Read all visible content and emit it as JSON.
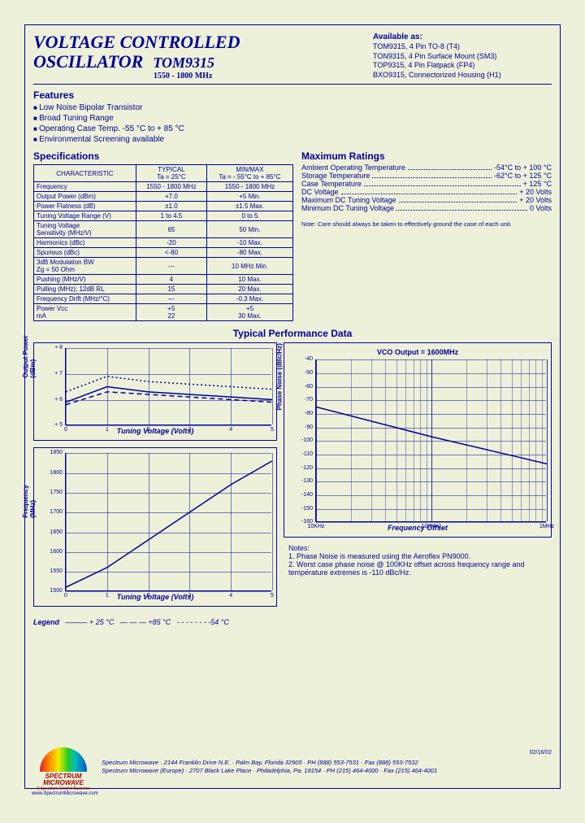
{
  "header": {
    "title_line1": "VOLTAGE CONTROLLED",
    "title_line2": "OSCILLATOR",
    "part_number": "TOM9315",
    "freq_range": "1550 - 1800 MHz"
  },
  "available": {
    "heading": "Available as:",
    "items": [
      "TOM9315, 4 Pin TO-8 (T4)",
      "TON9315, 4 Pin Surface Mount (SM3)",
      "TOP9315, 4 Pin Flatpack (FP4)",
      "BXO9315, Connectorized Housing (H1)"
    ]
  },
  "features": {
    "heading": "Features",
    "items": [
      "Low Noise Bipolar Transistor",
      "Broad Tuning Range",
      "Operating Case Temp. -55 °C to + 85 °C",
      "Environmental Screening available"
    ]
  },
  "spec": {
    "heading": "Specifications",
    "col_headers": [
      "CHARACTERISTIC",
      "TYPICAL\nTa = 25°C",
      "MIN/MAX\nTa = - 55°C to + 85°C"
    ],
    "rows": [
      [
        "Frequency",
        "1550 - 1800 MHz",
        "1550 - 1800 MHz"
      ],
      [
        "Output Power (dBm)",
        "+7.0",
        "+5 Min."
      ],
      [
        "Power Flatness (dB)",
        "±1.0",
        "±1.5 Max."
      ],
      [
        "Tuning Voltage Range (V)",
        "1 to 4.5",
        "0 to 5"
      ],
      [
        "Tuning Voltage\nSensitivity (MHz/V)",
        "65",
        "50 Min."
      ],
      [
        "Harmonics (dBc)",
        "-20",
        "-10 Max."
      ],
      [
        "Spurious (dBc)",
        "<-80",
        "-80 Max."
      ],
      [
        "3dB Modulation BW\nZg = 50 Ohm",
        "---",
        "10 MHz Min."
      ],
      [
        "Pushing (MHz/V)",
        "4",
        "10 Max."
      ],
      [
        "Pulling (MHz); 12dB RL",
        "15",
        "20 Max."
      ],
      [
        "Frequency Drift (MHz/°C)",
        "---",
        "-0.3 Max."
      ],
      [
        "Power          Vcc\n                 mA",
        "+5\n22",
        "+5\n30 Max."
      ]
    ]
  },
  "max_ratings": {
    "heading": "Maximum Ratings",
    "rows": [
      [
        "Ambient Operating Temperature",
        "-54°C to + 100 °C"
      ],
      [
        "Storage Temperature",
        "-62°C to + 125 °C"
      ],
      [
        "Case Temperature",
        "+ 125 °C"
      ],
      [
        "DC Voltage",
        "+ 20 Volts"
      ],
      [
        "Maximum DC Tuning Voltage",
        "+ 20 Volts"
      ],
      [
        "Minimum DC Tuning Voltage",
        "0 Volts"
      ]
    ],
    "note": "Note: Care should always be taken to effectively ground the case of each unit."
  },
  "perf_heading": "Typical Performance Data",
  "chart_power": {
    "type": "line",
    "ylabel": "Output Power\n(dBm)",
    "xlabel": "Tuning Voltage (Volts)",
    "ylim": [
      5,
      8
    ],
    "ytick_step": 1,
    "xlim": [
      0,
      5
    ],
    "xtick_step": 1,
    "grid_color": "#000099",
    "line_color": "#000099",
    "series": [
      {
        "legend": "+25°C",
        "dash": "solid",
        "points": [
          [
            0,
            5.9
          ],
          [
            1,
            6.5
          ],
          [
            2,
            6.3
          ],
          [
            3,
            6.2
          ],
          [
            4,
            6.1
          ],
          [
            5,
            6.0
          ]
        ]
      },
      {
        "legend": "+85°C",
        "dash": "dash",
        "points": [
          [
            0,
            5.8
          ],
          [
            1,
            6.3
          ],
          [
            2,
            6.2
          ],
          [
            3,
            6.1
          ],
          [
            4,
            6.0
          ],
          [
            5,
            5.9
          ]
        ]
      },
      {
        "legend": "-54°C",
        "dash": "dot",
        "points": [
          [
            0,
            6.3
          ],
          [
            1,
            6.9
          ],
          [
            2,
            6.7
          ],
          [
            3,
            6.6
          ],
          [
            4,
            6.5
          ],
          [
            5,
            6.4
          ]
        ]
      }
    ]
  },
  "chart_freq": {
    "type": "line",
    "ylabel": "Frequency\n(MHz)",
    "xlabel": "Tuning Voltage (Volts)",
    "ylim": [
      1500,
      1850
    ],
    "ytick_step": 50,
    "xlim": [
      0,
      5
    ],
    "xtick_step": 1,
    "grid_color": "#000099",
    "line_color": "#000099",
    "series": [
      {
        "dash": "solid",
        "points": [
          [
            0,
            1510
          ],
          [
            1,
            1560
          ],
          [
            2,
            1630
          ],
          [
            3,
            1700
          ],
          [
            4,
            1770
          ],
          [
            5,
            1830
          ]
        ]
      }
    ]
  },
  "chart_pn": {
    "type": "line",
    "title": "VCO Output = 1600MHz",
    "ylabel": "Phase Noise (dBc/Hz)",
    "xlabel": "Frequency Offset",
    "ylim": [
      -160,
      -40
    ],
    "ytick_step": 10,
    "xticks_labels": [
      "10KHz",
      "100KHz",
      "1MHz"
    ],
    "xscale": "log",
    "grid_color": "#000099",
    "line_color": "#000099",
    "series": [
      {
        "dash": "solid",
        "points": [
          [
            0,
            -75
          ],
          [
            0.5,
            -97
          ],
          [
            1,
            -117
          ]
        ]
      }
    ]
  },
  "legend": {
    "label": "Legend",
    "items": [
      {
        "label": "+ 25 °C",
        "dash": "———"
      },
      {
        "label": "+85 °C",
        "dash": "— — —"
      },
      {
        "label": "-54 °C",
        "dash": "- - - - - - -"
      }
    ]
  },
  "notes": {
    "heading": "Notes:",
    "items": [
      "1. Phase Noise is measured using the Aeroflex PN9000.",
      "2. Worst case phase noise @ 100KHz offset across frequency range and temperature extremes is -110 dBc/Hz."
    ]
  },
  "footer": {
    "logo_top": "SPECTRUM",
    "logo_bottom": "MICROWAVE",
    "logo_tag": "A Spectrum Control Business",
    "url": "www.SpectrumMicrowave.com",
    "line1": "Spectrum Microwave · 2144 Franklin Drive N.E. · Palm Bay, Florida 32905 · PH (888) 553-7531 · Fax (888) 553-7532",
    "line2": "Spectrum Microwave (Europe) · 2707 Black Lake Place · Philadelphia, Pa. 19154 · PH (215) 464-4000 · Fax (215) 464-4001",
    "code": "02/16/02"
  }
}
